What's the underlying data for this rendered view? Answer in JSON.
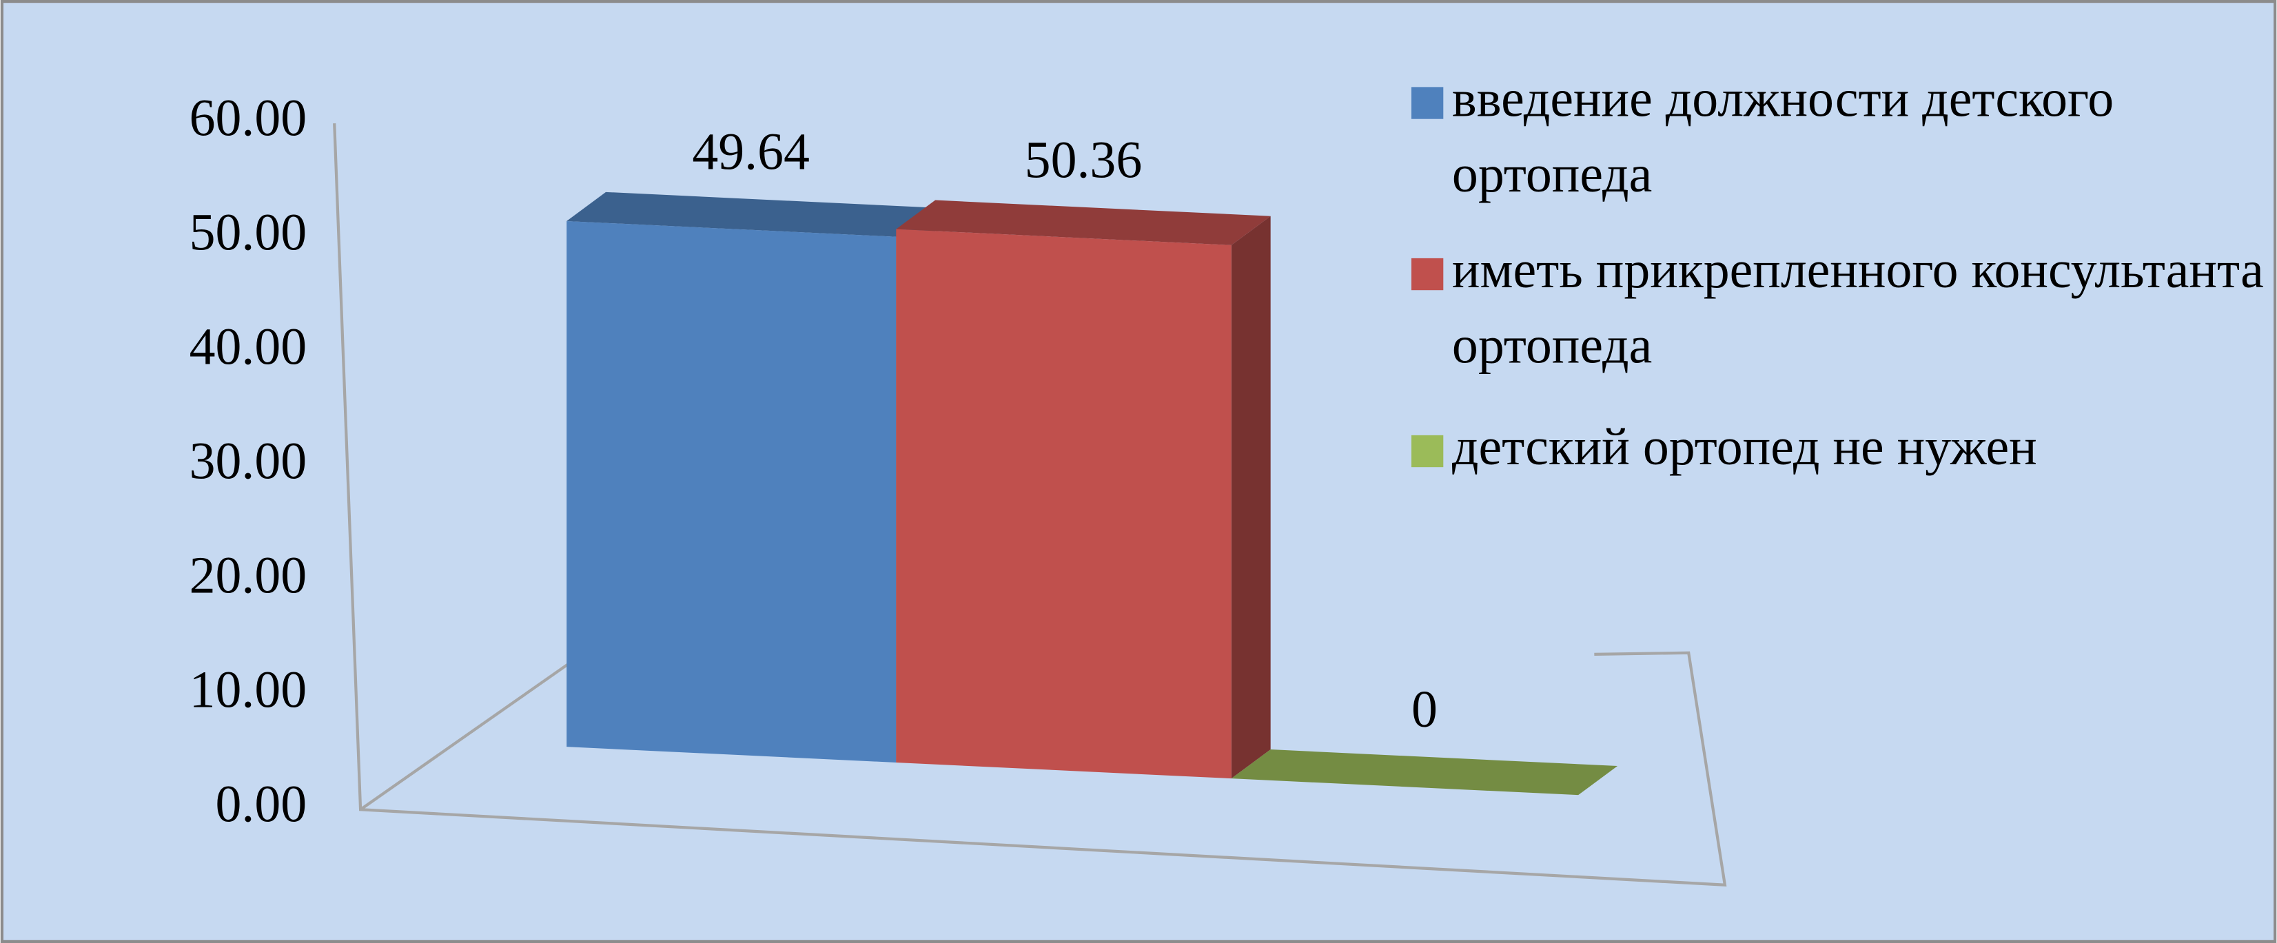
{
  "chart_data": {
    "type": "bar3d",
    "categories": [
      null
    ],
    "series": [
      {
        "name": "введение должности детского ортопеда",
        "color": "#4f81bd",
        "values": [
          49.64
        ]
      },
      {
        "name": "иметь прикрепленного консультанта ортопеда",
        "color": "#c0504d",
        "values": [
          50.36
        ]
      },
      {
        "name": "детский ортопед не нужен",
        "color": "#9bbb59",
        "values": [
          0
        ]
      }
    ],
    "ylim": [
      0,
      60
    ],
    "yticks": [
      {
        "value": 0,
        "label": "0.00"
      },
      {
        "value": 10,
        "label": "10.00"
      },
      {
        "value": 20,
        "label": "20.00"
      },
      {
        "value": 30,
        "label": "30.00"
      },
      {
        "value": 40,
        "label": "40.00"
      },
      {
        "value": 50,
        "label": "50.00"
      },
      {
        "value": 60,
        "label": "60.00"
      }
    ],
    "grid": false,
    "legend": "right"
  }
}
